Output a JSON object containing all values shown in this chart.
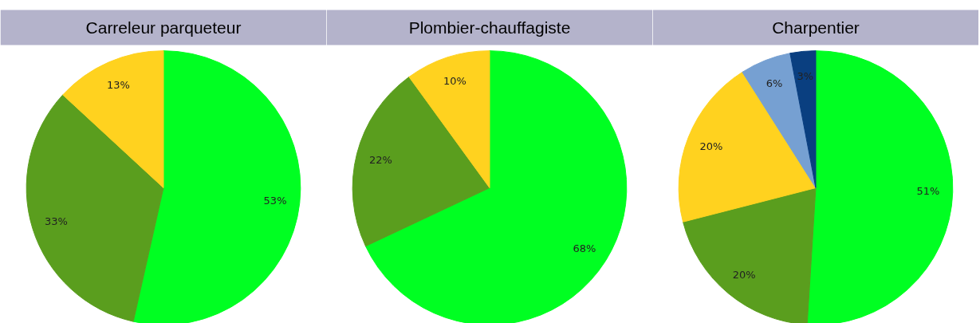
{
  "chart_data": [
    {
      "type": "pie",
      "title": "Carreleur parqueteur",
      "categories": [
        null,
        null,
        null
      ],
      "values": [
        53,
        33,
        13
      ],
      "colors": [
        "#00ff22",
        "#5a9e1e",
        "#ffd21f"
      ],
      "value_labels": [
        "53%",
        "33%",
        "13%"
      ]
    },
    {
      "type": "pie",
      "title": "Plombier-chauffagiste",
      "categories": [
        null,
        null,
        null
      ],
      "values": [
        68,
        22,
        10
      ],
      "colors": [
        "#00ff22",
        "#5a9e1e",
        "#ffd21f"
      ],
      "value_labels": [
        "68%",
        "22%",
        "10%"
      ]
    },
    {
      "type": "pie",
      "title": "Charpentier",
      "categories": [
        null,
        null,
        null,
        null,
        null
      ],
      "values": [
        51,
        20,
        20,
        6,
        3
      ],
      "colors": [
        "#00ff22",
        "#5a9e1e",
        "#ffd21f",
        "#76a0d2",
        "#0a3f80"
      ],
      "value_labels": [
        "51%",
        "20%",
        "20%",
        "6%",
        "3%"
      ]
    }
  ]
}
